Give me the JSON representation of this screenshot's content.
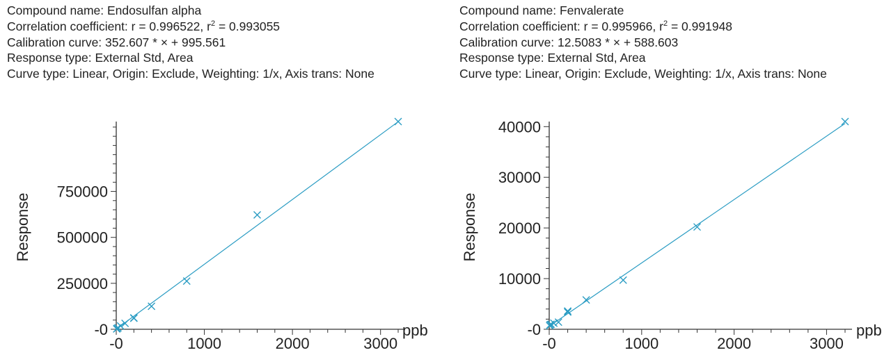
{
  "colors": {
    "series": "#2a9cc3",
    "axis": "#333333",
    "text": "#222222"
  },
  "chart_data": [
    {
      "type": "scatter",
      "info": {
        "compound": "Compound name: Endosulfan alpha",
        "corr_prefix": "Correlation coefficient: r = 0.996522, r",
        "corr_sup": "2",
        "corr_suffix": " = 0.993055",
        "calibration": "Calibration curve: 352.607 * × + 995.561",
        "response_type": "Response type: External Std, Area",
        "curve_type": "Curve type: Linear, Origin: Exclude, Weighting: 1/x, Axis trans: None"
      },
      "xlabel": "ppb",
      "ylabel": "Response",
      "xlim": [
        0,
        3200
      ],
      "ylim": [
        0,
        1130000
      ],
      "x_ticks": [
        0,
        1000,
        2000,
        3000
      ],
      "x_tick_labels": [
        "-0",
        "1000",
        "2000",
        "3000"
      ],
      "y_ticks": [
        0,
        250000,
        500000,
        750000
      ],
      "y_tick_labels": [
        "-0",
        "250000",
        "500000",
        "750000"
      ],
      "x_minor_step": 200,
      "y_minor_step": 50000,
      "fit": {
        "slope": 352.607,
        "intercept": 995.561
      },
      "points": [
        {
          "x": 5,
          "y": 2000
        },
        {
          "x": 10,
          "y": 4500
        },
        {
          "x": 20,
          "y": 8000
        },
        {
          "x": 50,
          "y": 18000
        },
        {
          "x": 100,
          "y": 32000
        },
        {
          "x": 200,
          "y": 62000
        },
        {
          "x": 200,
          "y": 60000
        },
        {
          "x": 400,
          "y": 125000
        },
        {
          "x": 800,
          "y": 262000
        },
        {
          "x": 1600,
          "y": 622000
        },
        {
          "x": 3200,
          "y": 1130000
        }
      ]
    },
    {
      "type": "scatter",
      "info": {
        "compound": "Compound name: Fenvalerate",
        "corr_prefix": "Correlation coefficient: r = 0.995966, r",
        "corr_sup": "2",
        "corr_suffix": " = 0.991948",
        "calibration": "Calibration curve: 12.5083 * × + 588.603",
        "response_type": "Response type: External Std, Area",
        "curve_type": "Curve type: Linear, Origin: Exclude, Weighting: 1/x, Axis trans: None"
      },
      "xlabel": "ppb",
      "ylabel": "Response",
      "xlim": [
        0,
        3200
      ],
      "ylim": [
        0,
        41000
      ],
      "x_ticks": [
        0,
        1000,
        2000,
        3000
      ],
      "x_tick_labels": [
        "-0",
        "1000",
        "2000",
        "3000"
      ],
      "y_ticks": [
        0,
        10000,
        20000,
        30000,
        40000
      ],
      "y_tick_labels": [
        "-0",
        "10000",
        "20000",
        "30000",
        "40000"
      ],
      "x_minor_step": 200,
      "y_minor_step": 2000,
      "fit": {
        "slope": 12.5083,
        "intercept": 588.603
      },
      "points": [
        {
          "x": 5,
          "y": 700
        },
        {
          "x": 10,
          "y": 900
        },
        {
          "x": 20,
          "y": 1000
        },
        {
          "x": 50,
          "y": 1200
        },
        {
          "x": 100,
          "y": 1400
        },
        {
          "x": 200,
          "y": 3600
        },
        {
          "x": 200,
          "y": 3400
        },
        {
          "x": 400,
          "y": 5800
        },
        {
          "x": 800,
          "y": 9700
        },
        {
          "x": 1600,
          "y": 20200
        },
        {
          "x": 3200,
          "y": 41000
        }
      ]
    }
  ]
}
